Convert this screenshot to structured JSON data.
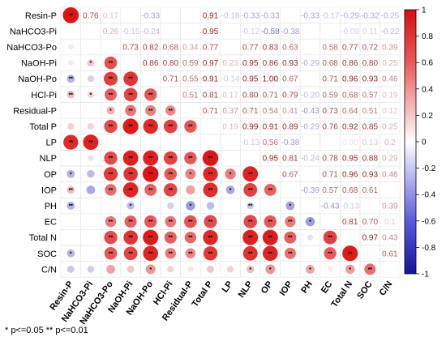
{
  "chart_data": {
    "type": "heatmap",
    "variables": [
      "Resin-P",
      "NaHCO3-Pi",
      "NaHCO3-Po",
      "NaOH-Pi",
      "NaOH-Po",
      "HCl-Pi",
      "Residual-P",
      "Total P",
      "LP",
      "NLP",
      "OP",
      "IOP",
      "PH",
      "EC",
      "Total N",
      "SOC",
      "C/N"
    ],
    "upper_values": [
      [
        null,
        0.76,
        0.17,
        null,
        -0.33,
        0.0,
        null,
        0.91,
        -0.18,
        -0.33,
        -0.33,
        0.0,
        -0.33,
        -0.17,
        -0.29,
        -0.32,
        -0.25
      ],
      [
        null,
        null,
        0.26,
        -0.15,
        -0.24,
        null,
        null,
        0.95,
        null,
        -0.12,
        -0.58,
        -0.38,
        null,
        null,
        -0.09,
        0.11,
        -0.22
      ],
      [
        null,
        null,
        null,
        0.73,
        0.82,
        0.68,
        0.34,
        0.77,
        null,
        0.77,
        0.83,
        0.63,
        null,
        0.58,
        0.77,
        0.72,
        0.39
      ],
      [
        null,
        null,
        null,
        null,
        0.86,
        0.8,
        0.59,
        0.97,
        0.23,
        0.95,
        0.86,
        0.93,
        -0.29,
        0.68,
        0.86,
        0.8,
        0.25
      ],
      [
        null,
        null,
        null,
        null,
        null,
        0.71,
        0.55,
        0.91,
        -0.14,
        0.95,
        1.0,
        0.67,
        0.0,
        0.71,
        0.96,
        0.93,
        0.46
      ],
      [
        null,
        null,
        null,
        null,
        null,
        null,
        0.51,
        0.81,
        0.17,
        0.8,
        0.71,
        0.79,
        -0.2,
        0.59,
        0.68,
        0.57,
        0.19
      ],
      [
        null,
        null,
        null,
        null,
        null,
        null,
        null,
        0.71,
        0.37,
        0.71,
        0.54,
        0.41,
        -0.43,
        0.73,
        0.64,
        0.51,
        0.12
      ],
      [
        null,
        null,
        null,
        null,
        null,
        null,
        null,
        null,
        0.19,
        0.99,
        0.91,
        0.89,
        -0.29,
        0.76,
        0.92,
        0.85,
        0.25
      ],
      [
        null,
        null,
        null,
        null,
        null,
        null,
        null,
        null,
        null,
        -0.13,
        0.56,
        -0.38,
        null,
        null,
        0.0,
        0.13,
        0.2
      ],
      [
        null,
        null,
        null,
        null,
        null,
        null,
        null,
        null,
        null,
        null,
        0.95,
        0.81,
        -0.24,
        0.78,
        0.95,
        0.88,
        0.29
      ],
      [
        null,
        null,
        null,
        null,
        null,
        null,
        null,
        null,
        null,
        null,
        null,
        0.67,
        0.0,
        0.71,
        0.96,
        0.93,
        0.46
      ],
      [
        null,
        null,
        null,
        null,
        null,
        null,
        null,
        null,
        null,
        null,
        null,
        null,
        -0.39,
        0.57,
        0.68,
        0.61,
        0.0
      ],
      [
        null,
        null,
        null,
        null,
        null,
        null,
        null,
        null,
        null,
        null,
        null,
        null,
        null,
        -0.43,
        -0.13,
        null,
        0.39
      ],
      [
        null,
        null,
        null,
        null,
        null,
        null,
        null,
        null,
        null,
        null,
        null,
        null,
        null,
        null,
        0.81,
        0.7,
        0.1
      ],
      [
        null,
        null,
        null,
        null,
        null,
        null,
        null,
        null,
        null,
        null,
        null,
        null,
        null,
        null,
        null,
        0.97,
        0.43
      ],
      [
        null,
        null,
        null,
        null,
        null,
        null,
        null,
        null,
        null,
        null,
        null,
        null,
        null,
        null,
        null,
        null,
        0.61
      ],
      [
        null,
        null,
        null,
        null,
        null,
        null,
        null,
        null,
        null,
        null,
        null,
        null,
        null,
        null,
        null,
        null,
        null
      ]
    ],
    "lower_values": [
      [
        1.0,
        null,
        null,
        null,
        null,
        null,
        null,
        null,
        null,
        null,
        null,
        null,
        null,
        null,
        null,
        null,
        null
      ],
      [
        null,
        null,
        null,
        null,
        null,
        null,
        null,
        null,
        null,
        null,
        null,
        null,
        null,
        null,
        null,
        null,
        null
      ],
      [
        0.1,
        null,
        null,
        null,
        null,
        null,
        null,
        null,
        null,
        null,
        null,
        null,
        null,
        null,
        null,
        null,
        null
      ],
      [
        0.1,
        0.25,
        0.73,
        null,
        null,
        null,
        null,
        null,
        null,
        null,
        null,
        null,
        null,
        null,
        null,
        null,
        null
      ],
      [
        -0.33,
        -0.2,
        0.82,
        0.86,
        null,
        null,
        null,
        null,
        null,
        null,
        null,
        null,
        null,
        null,
        null,
        null,
        null
      ],
      [
        0.3,
        0.2,
        0.68,
        0.8,
        0.71,
        null,
        null,
        null,
        null,
        null,
        null,
        null,
        null,
        null,
        null,
        null,
        null
      ],
      [
        null,
        null,
        0.34,
        0.59,
        0.55,
        0.51,
        null,
        null,
        null,
        null,
        null,
        null,
        null,
        null,
        null,
        null,
        null
      ],
      [
        0.2,
        0.2,
        0.77,
        0.97,
        0.91,
        0.81,
        0.71,
        null,
        null,
        null,
        null,
        null,
        null,
        null,
        null,
        null,
        null
      ],
      [
        0.91,
        0.95,
        null,
        null,
        null,
        null,
        null,
        null,
        null,
        null,
        null,
        null,
        null,
        null,
        null,
        null,
        null
      ],
      [
        null,
        -0.12,
        0.77,
        0.95,
        0.95,
        0.8,
        0.71,
        0.99,
        null,
        null,
        null,
        null,
        null,
        null,
        null,
        null,
        null
      ],
      [
        -0.33,
        -0.3,
        0.83,
        0.86,
        1.0,
        0.71,
        0.54,
        0.91,
        0.56,
        0.95,
        null,
        null,
        null,
        null,
        null,
        null,
        null
      ],
      [
        0.3,
        -0.38,
        0.63,
        0.93,
        0.67,
        0.79,
        0.41,
        0.89,
        -0.38,
        0.81,
        0.67,
        null,
        null,
        null,
        null,
        null,
        null
      ],
      [
        -0.33,
        null,
        null,
        -0.29,
        null,
        -0.2,
        -0.43,
        -0.29,
        null,
        -0.24,
        null,
        -0.39,
        null,
        null,
        null,
        null,
        null
      ],
      [
        null,
        null,
        0.58,
        0.68,
        0.71,
        0.59,
        0.73,
        0.76,
        null,
        0.78,
        0.71,
        0.57,
        -0.43,
        null,
        null,
        null,
        null
      ],
      [
        null,
        null,
        0.77,
        0.86,
        0.96,
        0.68,
        0.64,
        0.92,
        null,
        0.95,
        0.96,
        0.68,
        -0.13,
        0.81,
        null,
        null,
        null
      ],
      [
        -0.32,
        null,
        0.72,
        0.8,
        0.93,
        0.57,
        0.51,
        0.85,
        null,
        0.88,
        0.93,
        0.61,
        null,
        0.7,
        0.97,
        null,
        null
      ],
      [
        -0.25,
        -0.22,
        0.39,
        0.25,
        0.46,
        0.19,
        0.12,
        0.25,
        0.2,
        0.29,
        0.46,
        0.0,
        0.39,
        0.1,
        0.43,
        0.61,
        null
      ]
    ],
    "upper_labels": [
      [
        null,
        "0.76",
        "0.17",
        "",
        "-0.33",
        "",
        "",
        "0.91",
        "-0.18",
        "-0.33",
        "-0.33",
        "",
        "-0.33",
        "-0.17",
        "-0.29",
        "-0.32",
        "-0.25"
      ],
      [
        null,
        null,
        "0.26",
        "-0.15",
        "-0.24",
        "",
        "",
        "0.95",
        "",
        "-0.12",
        "-0.58",
        "-0.38",
        "",
        "",
        "-0.09",
        "0.11",
        "-0.22"
      ],
      [
        null,
        null,
        null,
        "0.73",
        "0.82",
        "0.68",
        "0.34",
        "0.77",
        "",
        "0.77",
        "0.83",
        "0.63",
        "",
        "0.58",
        "0.77",
        "0.72",
        "0.39"
      ],
      [
        null,
        null,
        null,
        null,
        "0.86",
        "0.80",
        "0.59",
        "0.97",
        "0.23",
        "0.95",
        "0.86",
        "0.93",
        "-0.29",
        "0.68",
        "0.86",
        "0.80",
        "0.25"
      ],
      [
        null,
        null,
        null,
        null,
        null,
        "0.71",
        "0.55",
        "0.91",
        "-0.14",
        "0.95",
        "1.00",
        "0.67",
        "",
        "0.71",
        "0.96",
        "0.93",
        "0.46"
      ],
      [
        null,
        null,
        null,
        null,
        null,
        null,
        "0.51",
        "0.81",
        "0.17",
        "0.80",
        "0.71",
        "0.79",
        "-0.20",
        "0.59",
        "0.68",
        "0.57",
        "0.19"
      ],
      [
        null,
        null,
        null,
        null,
        null,
        null,
        null,
        "0.71",
        "0.37",
        "0.71",
        "0.54",
        "0.41",
        "-0.43",
        "0.73",
        "0.64",
        "0.51",
        "0.12"
      ],
      [
        null,
        null,
        null,
        null,
        null,
        null,
        null,
        null,
        "0.19",
        "0.99",
        "0.91",
        "0.89",
        "-0.29",
        "0.76",
        "0.92",
        "0.85",
        "0.25"
      ],
      [
        null,
        null,
        null,
        null,
        null,
        null,
        null,
        null,
        null,
        "-0.13",
        "0.56",
        "-0.38",
        "",
        "",
        "0.00",
        "0.13",
        "0.2"
      ],
      [
        null,
        null,
        null,
        null,
        null,
        null,
        null,
        null,
        null,
        null,
        "0.95",
        "0.81",
        "-0.24",
        "0.78",
        "0.95",
        "0.88",
        "0.29"
      ],
      [
        null,
        null,
        null,
        null,
        null,
        null,
        null,
        null,
        null,
        null,
        null,
        "0.67",
        "",
        "0.71",
        "0.96",
        "0.93",
        "0.46"
      ],
      [
        null,
        null,
        null,
        null,
        null,
        null,
        null,
        null,
        null,
        null,
        null,
        null,
        "-0.39",
        "0.57",
        "0.68",
        "0.61",
        ""
      ],
      [
        null,
        null,
        null,
        null,
        null,
        null,
        null,
        null,
        null,
        null,
        null,
        null,
        null,
        "-0.43",
        "-0.13",
        "",
        "0.39"
      ],
      [
        null,
        null,
        null,
        null,
        null,
        null,
        null,
        null,
        null,
        null,
        null,
        null,
        null,
        null,
        "0.81",
        "0.70",
        "0.1"
      ],
      [
        null,
        null,
        null,
        null,
        null,
        null,
        null,
        null,
        null,
        null,
        null,
        null,
        null,
        null,
        null,
        "0.97",
        "0.43"
      ],
      [
        null,
        null,
        null,
        null,
        null,
        null,
        null,
        null,
        null,
        null,
        null,
        null,
        null,
        null,
        null,
        null,
        "0.61"
      ],
      [
        null,
        null,
        null,
        null,
        null,
        null,
        null,
        null,
        null,
        null,
        null,
        null,
        null,
        null,
        null,
        null,
        null
      ]
    ],
    "lower_stars": [
      [
        "**",
        "",
        "",
        "",
        "",
        "",
        "",
        "",
        "",
        "",
        "",
        "",
        "",
        "",
        "",
        "",
        ""
      ],
      [
        "",
        "",
        "",
        "",
        "",
        "",
        "",
        "",
        "",
        "",
        "",
        "",
        "",
        "",
        "",
        "",
        ""
      ],
      [
        "",
        "",
        "",
        "",
        "",
        "",
        "",
        "",
        "",
        "",
        "",
        "",
        "",
        "",
        "",
        "",
        ""
      ],
      [
        "",
        "*",
        "**",
        "",
        "",
        "",
        "",
        "",
        "",
        "",
        "",
        "",
        "",
        "",
        "",
        "",
        ""
      ],
      [
        "**",
        "",
        "**",
        "**",
        "",
        "",
        "",
        "",
        "",
        "",
        "",
        "",
        "",
        "",
        "",
        "",
        ""
      ],
      [
        "**",
        "*",
        "**",
        "**",
        "**",
        "",
        "",
        "",
        "",
        "",
        "",
        "",
        "",
        "",
        "",
        "",
        ""
      ],
      [
        "",
        "",
        "*",
        "**",
        "**",
        "**",
        "",
        "",
        "",
        "",
        "",
        "",
        "",
        "",
        "",
        "",
        ""
      ],
      [
        "",
        "",
        "**",
        "**",
        "**",
        "**",
        "**",
        "",
        "",
        "",
        "",
        "",
        "",
        "",
        "",
        "",
        ""
      ],
      [
        "**",
        "**",
        "",
        "",
        "",
        "",
        "",
        "",
        "",
        "",
        "",
        "",
        "",
        "",
        "",
        "",
        ""
      ],
      [
        "",
        "",
        "**",
        "**",
        "**",
        "**",
        "**",
        "**",
        "",
        "",
        "",
        "",
        "",
        "",
        "",
        "",
        ""
      ],
      [
        "*",
        "",
        "**",
        "**",
        "**",
        "**",
        "*",
        "**",
        "*",
        "**",
        "",
        "",
        "",
        "",
        "",
        "",
        ""
      ],
      [
        "**",
        "",
        "**",
        "**",
        "**",
        "**",
        "",
        "**",
        "*",
        "**",
        "**",
        "",
        "",
        "",
        "",
        "",
        ""
      ],
      [
        "**",
        "",
        "",
        "*",
        "",
        "",
        "*",
        "",
        "",
        "**",
        "",
        "*",
        "",
        "",
        "",
        "",
        ""
      ],
      [
        "",
        "",
        "**",
        "**",
        "**",
        "**",
        "**",
        "**",
        "",
        "**",
        "**",
        "**",
        "*",
        "",
        "",
        "",
        ""
      ],
      [
        "",
        "",
        "**",
        "**",
        "**",
        "**",
        "**",
        "**",
        "",
        "**",
        "**",
        "**",
        "",
        "**",
        "",
        "",
        ""
      ],
      [
        "*",
        "",
        "**",
        "**",
        "**",
        "**",
        "**",
        "**",
        "",
        "**",
        "**",
        "**",
        "",
        "**",
        "**",
        "",
        ""
      ],
      [
        "",
        "",
        "",
        "",
        "*",
        "",
        "",
        "",
        "",
        "*",
        "*",
        "",
        "*",
        "",
        "*",
        "**",
        ""
      ]
    ],
    "colorbar": {
      "min": -1,
      "max": 1,
      "ticks": [
        "1",
        "0.8",
        "0.6",
        "0.4",
        "0.2",
        "0",
        "-0.2",
        "-0.4",
        "-0.6",
        "-0.8",
        "-1"
      ]
    },
    "footnote": "* p<=0.05  ** p<=0.01"
  }
}
